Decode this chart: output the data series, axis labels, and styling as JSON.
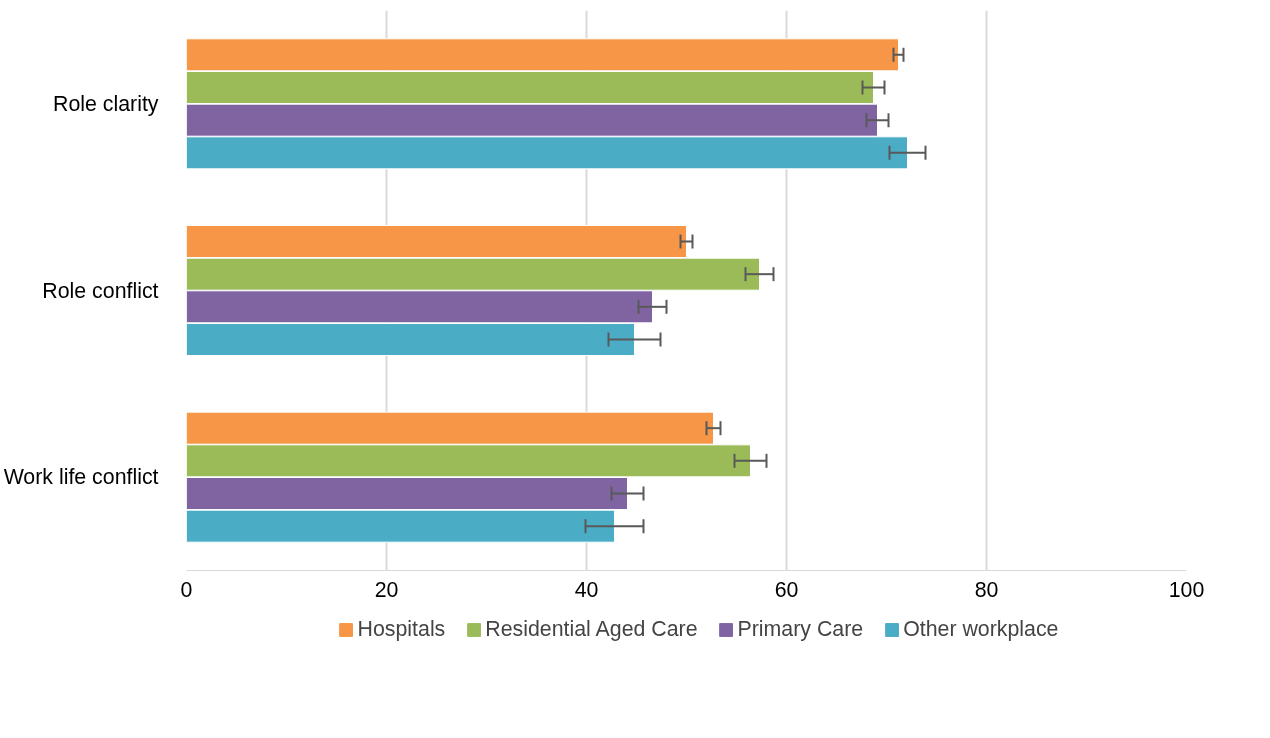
{
  "chart_data": {
    "type": "bar",
    "orientation": "horizontal",
    "categories": [
      "Role clarity",
      "Role conflict",
      "Work life conflict"
    ],
    "series": [
      {
        "name": "Hospitals",
        "color": "#f79646",
        "values": [
          71.2,
          50.0,
          52.7
        ],
        "errors": [
          0.5,
          0.6,
          0.7
        ]
      },
      {
        "name": "Residential Aged Care",
        "color": "#9bbb59",
        "values": [
          68.7,
          57.3,
          56.4
        ],
        "errors": [
          1.1,
          1.4,
          1.6
        ]
      },
      {
        "name": "Primary Care",
        "color": "#8064a2",
        "values": [
          69.1,
          46.6,
          44.1
        ],
        "errors": [
          1.1,
          1.4,
          1.6
        ]
      },
      {
        "name": "Other workplace",
        "color": "#4bacc6",
        "values": [
          72.1,
          44.8,
          42.8
        ],
        "errors": [
          1.8,
          2.6,
          2.9
        ]
      }
    ],
    "xlim": [
      0,
      100
    ],
    "xticks": [
      0,
      20,
      40,
      60,
      80,
      100
    ],
    "grid": "x",
    "legend": "bottom"
  }
}
